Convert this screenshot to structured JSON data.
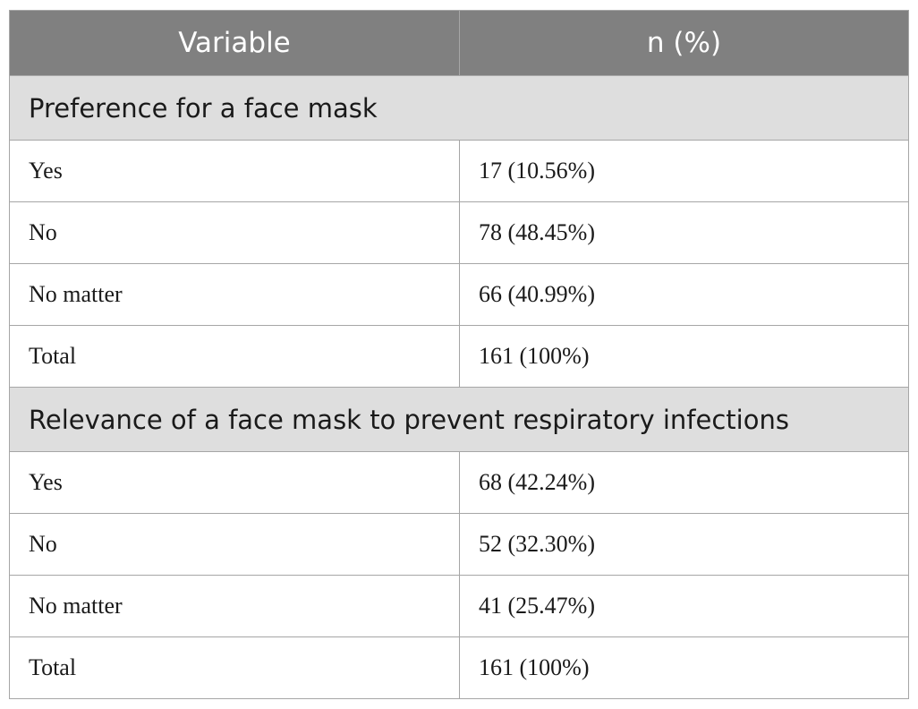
{
  "table": {
    "headers": [
      "Variable",
      "n (%)"
    ],
    "sections": [
      {
        "title": "Preference for a face mask",
        "rows": [
          {
            "variable": "Yes",
            "value": "17 (10.56%)"
          },
          {
            "variable": "No",
            "value": "78 (48.45%)"
          },
          {
            "variable": "No matter",
            "value": "66 (40.99%)"
          },
          {
            "variable": "Total",
            "value": "161 (100%)"
          }
        ]
      },
      {
        "title": "Relevance of a face mask to prevent respiratory infections",
        "rows": [
          {
            "variable": "Yes",
            "value": "68 (42.24%)"
          },
          {
            "variable": "No",
            "value": "52 (32.30%)"
          },
          {
            "variable": "No matter",
            "value": "41 (25.47%)"
          },
          {
            "variable": "Total",
            "value": "161 (100%)"
          }
        ]
      }
    ]
  }
}
